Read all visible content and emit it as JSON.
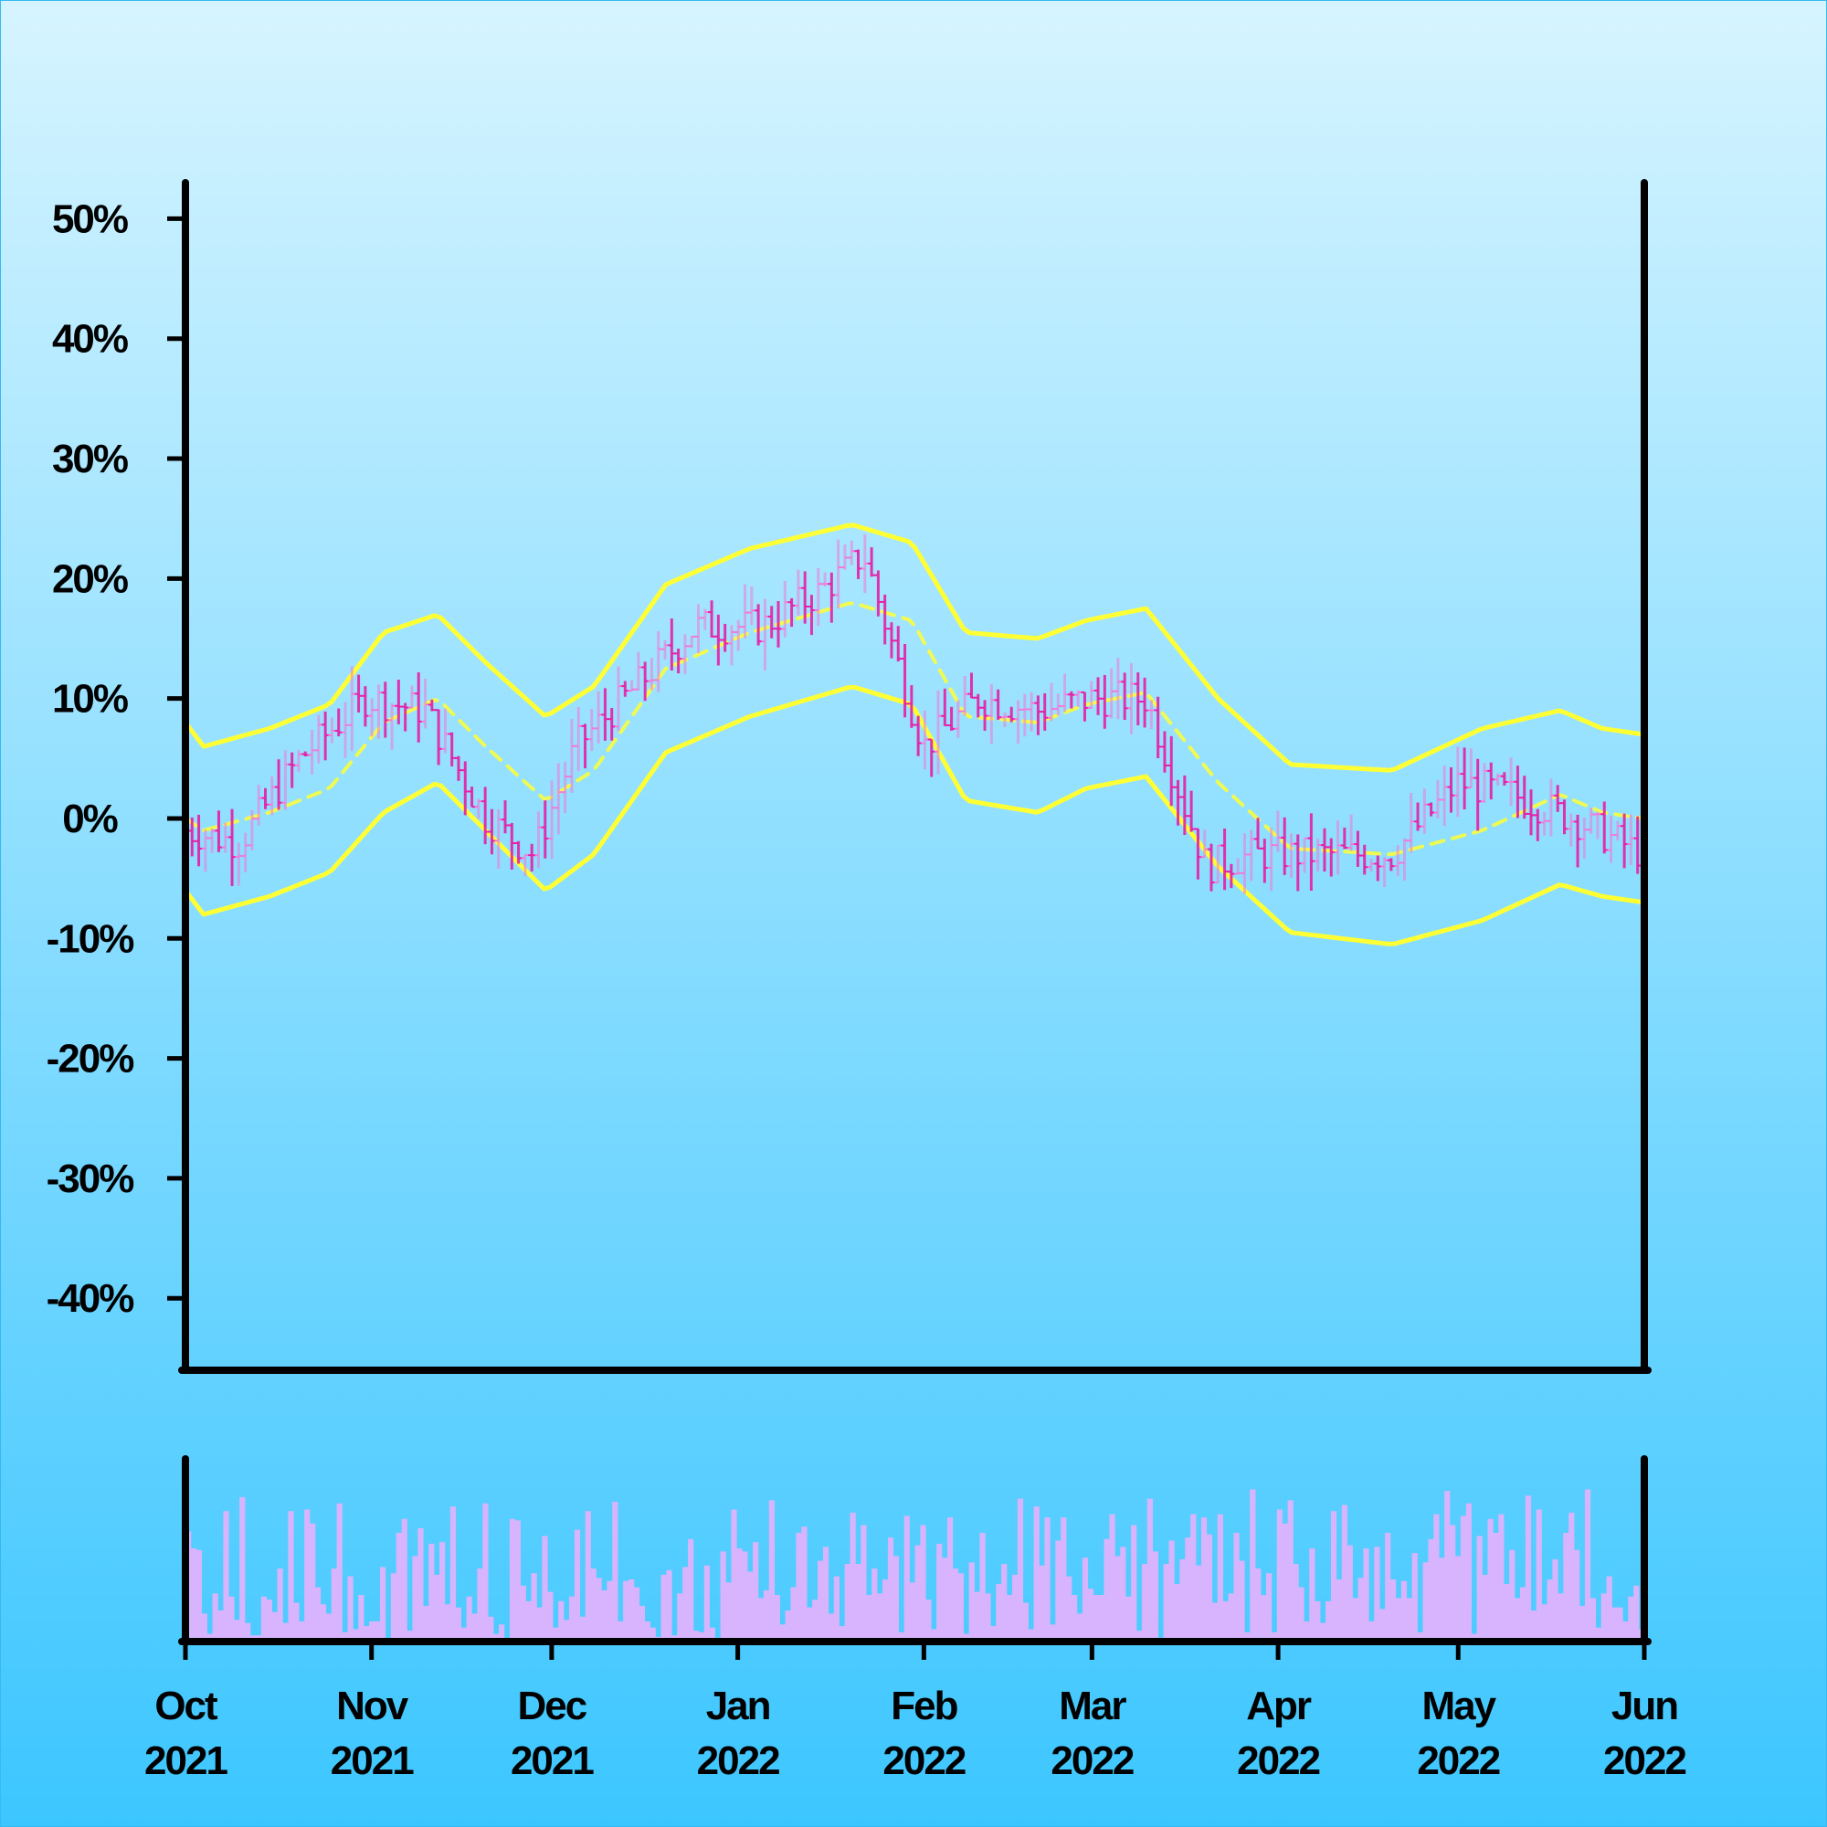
{
  "background": {
    "top_color": "#d6f4ff",
    "bottom_color": "#3cc6ff"
  },
  "colors": {
    "up_bar": "#f07ad8",
    "down_bar": "#e61fa8",
    "band": "#ffff33",
    "volume": "#d8b4ff",
    "axis": "#000000"
  },
  "chart_data": {
    "type": "line",
    "title": "",
    "xlabel": "",
    "ylabel": "",
    "start_date": "2021-10-01",
    "end_date": "2022-06-01",
    "ylim": [
      -0.46,
      0.53
    ],
    "y_ticks": [
      {
        "value": 0.5,
        "label": "50%"
      },
      {
        "value": 0.4,
        "label": "40%"
      },
      {
        "value": 0.3,
        "label": "30%"
      },
      {
        "value": 0.2,
        "label": "20%"
      },
      {
        "value": 0.1,
        "label": "10%"
      },
      {
        "value": 0.0,
        "label": "0%"
      },
      {
        "value": -0.1,
        "label": "-10%"
      },
      {
        "value": -0.2,
        "label": "-20%"
      },
      {
        "value": -0.3,
        "label": "-30%"
      },
      {
        "value": -0.4,
        "label": "-40%"
      }
    ],
    "x_ticks": [
      {
        "date": "2021-10-01",
        "month": "Oct",
        "year": "2021"
      },
      {
        "date": "2021-11-01",
        "month": "Nov",
        "year": "2021"
      },
      {
        "date": "2021-12-01",
        "month": "Dec",
        "year": "2021"
      },
      {
        "date": "2022-01-01",
        "month": "Jan",
        "year": "2022"
      },
      {
        "date": "2022-02-01",
        "month": "Feb",
        "year": "2022"
      },
      {
        "date": "2022-03-01",
        "month": "Mar",
        "year": "2022"
      },
      {
        "date": "2022-04-01",
        "month": "Apr",
        "year": "2022"
      },
      {
        "date": "2022-05-01",
        "month": "May",
        "year": "2022"
      },
      {
        "date": "2022-06-01",
        "month": "Jun",
        "year": "2022"
      }
    ],
    "series": [
      {
        "role": "price-bars",
        "style": "ohlc-vertical-bars",
        "points": [
          {
            "date": "2021-10-01",
            "value": -0.01
          },
          {
            "date": "2021-10-10",
            "value": -0.02
          },
          {
            "date": "2021-10-20",
            "value": 0.05
          },
          {
            "date": "2021-10-31",
            "value": 0.1
          },
          {
            "date": "2021-11-10",
            "value": 0.09
          },
          {
            "date": "2021-11-20",
            "value": 0.0
          },
          {
            "date": "2021-11-28",
            "value": -0.03
          },
          {
            "date": "2021-12-05",
            "value": 0.06
          },
          {
            "date": "2021-12-15",
            "value": 0.11
          },
          {
            "date": "2021-12-25",
            "value": 0.16
          },
          {
            "date": "2022-01-05",
            "value": 0.16
          },
          {
            "date": "2022-01-15",
            "value": 0.19
          },
          {
            "date": "2022-01-22",
            "value": 0.22
          },
          {
            "date": "2022-02-01",
            "value": 0.06
          },
          {
            "date": "2022-02-10",
            "value": 0.1
          },
          {
            "date": "2022-02-20",
            "value": 0.09
          },
          {
            "date": "2022-03-01",
            "value": 0.1
          },
          {
            "date": "2022-03-10",
            "value": 0.1
          },
          {
            "date": "2022-03-20",
            "value": -0.04
          },
          {
            "date": "2022-03-28",
            "value": -0.03
          },
          {
            "date": "2022-04-08",
            "value": -0.03
          },
          {
            "date": "2022-04-20",
            "value": -0.03
          },
          {
            "date": "2022-05-01",
            "value": 0.03
          },
          {
            "date": "2022-05-10",
            "value": 0.02
          },
          {
            "date": "2022-05-20",
            "value": 0.0
          },
          {
            "date": "2022-06-01",
            "value": -0.03
          }
        ]
      },
      {
        "role": "band-upper",
        "points": [
          {
            "date": "2021-10-01",
            "value": 0.08
          },
          {
            "date": "2021-10-04",
            "value": 0.06
          },
          {
            "date": "2021-10-15",
            "value": 0.075
          },
          {
            "date": "2021-10-25",
            "value": 0.095
          },
          {
            "date": "2021-11-03",
            "value": 0.155
          },
          {
            "date": "2021-11-12",
            "value": 0.17
          },
          {
            "date": "2021-11-20",
            "value": 0.13
          },
          {
            "date": "2021-11-30",
            "value": 0.085
          },
          {
            "date": "2021-12-08",
            "value": 0.11
          },
          {
            "date": "2021-12-20",
            "value": 0.195
          },
          {
            "date": "2022-01-03",
            "value": 0.225
          },
          {
            "date": "2022-01-20",
            "value": 0.245
          },
          {
            "date": "2022-01-30",
            "value": 0.23
          },
          {
            "date": "2022-02-08",
            "value": 0.155
          },
          {
            "date": "2022-02-20",
            "value": 0.15
          },
          {
            "date": "2022-02-28",
            "value": 0.165
          },
          {
            "date": "2022-03-10",
            "value": 0.175
          },
          {
            "date": "2022-03-22",
            "value": 0.1
          },
          {
            "date": "2022-04-03",
            "value": 0.045
          },
          {
            "date": "2022-04-20",
            "value": 0.04
          },
          {
            "date": "2022-05-05",
            "value": 0.075
          },
          {
            "date": "2022-05-18",
            "value": 0.09
          },
          {
            "date": "2022-05-25",
            "value": 0.075
          },
          {
            "date": "2022-06-01",
            "value": 0.07
          }
        ]
      },
      {
        "role": "band-middle",
        "style": "dashed",
        "points": [
          {
            "date": "2021-10-01",
            "value": 0.0
          },
          {
            "date": "2021-10-04",
            "value": -0.01
          },
          {
            "date": "2021-10-15",
            "value": 0.005
          },
          {
            "date": "2021-10-25",
            "value": 0.025
          },
          {
            "date": "2021-11-03",
            "value": 0.08
          },
          {
            "date": "2021-11-12",
            "value": 0.1
          },
          {
            "date": "2021-11-20",
            "value": 0.06
          },
          {
            "date": "2021-11-30",
            "value": 0.015
          },
          {
            "date": "2021-12-08",
            "value": 0.04
          },
          {
            "date": "2021-12-20",
            "value": 0.125
          },
          {
            "date": "2022-01-03",
            "value": 0.155
          },
          {
            "date": "2022-01-20",
            "value": 0.18
          },
          {
            "date": "2022-01-30",
            "value": 0.165
          },
          {
            "date": "2022-02-08",
            "value": 0.085
          },
          {
            "date": "2022-02-20",
            "value": 0.08
          },
          {
            "date": "2022-02-28",
            "value": 0.095
          },
          {
            "date": "2022-03-10",
            "value": 0.105
          },
          {
            "date": "2022-03-22",
            "value": 0.03
          },
          {
            "date": "2022-04-03",
            "value": -0.025
          },
          {
            "date": "2022-04-20",
            "value": -0.03
          },
          {
            "date": "2022-05-05",
            "value": -0.01
          },
          {
            "date": "2022-05-18",
            "value": 0.02
          },
          {
            "date": "2022-05-25",
            "value": 0.005
          },
          {
            "date": "2022-06-01",
            "value": 0.0
          }
        ]
      },
      {
        "role": "band-lower",
        "points": [
          {
            "date": "2021-10-01",
            "value": -0.06
          },
          {
            "date": "2021-10-04",
            "value": -0.08
          },
          {
            "date": "2021-10-15",
            "value": -0.065
          },
          {
            "date": "2021-10-25",
            "value": -0.045
          },
          {
            "date": "2021-11-03",
            "value": 0.005
          },
          {
            "date": "2021-11-12",
            "value": 0.03
          },
          {
            "date": "2021-11-20",
            "value": -0.01
          },
          {
            "date": "2021-11-30",
            "value": -0.06
          },
          {
            "date": "2021-12-08",
            "value": -0.03
          },
          {
            "date": "2021-12-20",
            "value": 0.055
          },
          {
            "date": "2022-01-03",
            "value": 0.085
          },
          {
            "date": "2022-01-20",
            "value": 0.11
          },
          {
            "date": "2022-01-30",
            "value": 0.095
          },
          {
            "date": "2022-02-08",
            "value": 0.015
          },
          {
            "date": "2022-02-20",
            "value": 0.005
          },
          {
            "date": "2022-02-28",
            "value": 0.025
          },
          {
            "date": "2022-03-10",
            "value": 0.035
          },
          {
            "date": "2022-03-22",
            "value": -0.04
          },
          {
            "date": "2022-04-03",
            "value": -0.095
          },
          {
            "date": "2022-04-20",
            "value": -0.105
          },
          {
            "date": "2022-05-05",
            "value": -0.085
          },
          {
            "date": "2022-05-18",
            "value": -0.055
          },
          {
            "date": "2022-05-25",
            "value": -0.065
          },
          {
            "date": "2022-06-01",
            "value": -0.07
          }
        ]
      }
    ],
    "volume": {
      "style": "bars",
      "relative_levels": [
        0.71,
        0.6,
        0.59,
        0.18,
        0.05,
        0.31,
        0.2,
        0.84,
        0.29,
        0.14,
        0.93,
        0.12,
        0.04,
        0.04,
        0.29,
        0.27,
        0.19,
        0.47,
        0.12,
        0.84,
        0.25,
        0.13,
        0.85,
        0.76,
        0.35,
        0.24,
        0.18,
        0.47,
        0.89,
        0.06,
        0.42,
        0.08,
        0.3,
        0.1,
        0.13,
        0.13,
        0.48,
        0.02,
        0.44,
        0.7,
        0.79,
        0.07,
        0.55,
        0.73,
        0.23,
        0.63,
        0.43,
        0.64,
        0.24,
        0.87,
        0.22,
        0.09,
        0.29,
        0.18,
        0.47,
        0.89,
        0.16,
        0.05,
        0.11,
        0.02,
        0.79,
        0.78,
        0.36,
        0.26,
        0.44,
        0.22,
        0.68,
        0.32,
        0.09,
        0.26,
        0.14,
        0.29,
        0.72,
        0.16,
        0.84,
        0.47,
        0.41,
        0.33,
        0.39,
        0.9,
        0.13,
        0.39,
        0.4,
        0.35,
        0.23,
        0.13,
        0.09,
        0.03,
        0.43,
        0.46,
        0.04,
        0.31,
        0.48,
        0.66,
        0.07,
        0.06,
        0.49,
        0.09,
        0.02,
        0.58,
        0.38,
        0.85,
        0.6,
        0.58,
        0.45,
        0.64,
        0.28,
        0.33,
        0.91,
        0.3,
        0.11,
        0.2,
        0.35,
        0.7,
        0.74,
        0.22,
        0.27,
        0.52,
        0.61,
        0.18,
        0.42,
        0.1,
        0.5,
        0.83,
        0.5,
        0.75,
        0.3,
        0.47,
        0.31,
        0.4,
        0.67,
        0.55,
        0.06,
        0.81,
        0.38,
        0.62,
        0.75,
        0.27,
        0.08,
        0.63,
        0.54,
        0.8,
        0.47,
        0.44,
        0.05,
        0.51,
        0.32,
        0.7,
        0.31,
        0.1,
        0.37,
        0.5,
        0.3,
        0.43,
        0.92,
        0.25,
        0.08,
        0.87,
        0.49,
        0.8,
        0.11,
        0.65,
        0.8,
        0.42,
        0.3,
        0.18,
        0.54,
        0.34,
        0.3,
        0.3,
        0.66,
        0.82,
        0.55,
        0.61,
        0.29,
        0.75,
        0.07,
        0.5,
        0.92,
        0.58,
        0.02,
        0.5,
        0.65,
        0.37,
        0.53,
        0.67,
        0.82,
        0.49,
        0.8,
        0.69,
        0.25,
        0.82,
        0.26,
        0.31,
        0.7,
        0.52,
        0.06,
        0.98,
        0.47,
        0.3,
        0.44,
        0.06,
        0.85,
        0.76,
        0.91,
        0.5,
        0.35,
        0.13,
        0.6,
        0.26,
        0.12,
        0.26,
        0.84,
        0.4,
        0.88,
        0.62,
        0.28,
        0.41,
        0.6,
        0.13,
        0.61,
        0.21,
        0.7,
        0.4,
        0.28,
        0.39,
        0.28,
        0.57,
        0.06,
        0.51,
        0.66,
        0.82,
        0.54,
        0.97,
        0.75,
        0.55,
        0.81,
        0.89,
        0.05,
        0.68,
        0.43,
        0.79,
        0.7,
        0.82,
        0.37,
        0.59,
        0.28,
        0.35,
        0.94,
        0.2,
        0.85,
        0.24,
        0.4,
        0.53,
        0.31,
        0.7,
        0.83,
        0.59,
        0.23,
        0.98,
        0.28,
        0.09,
        0.31,
        0.42,
        0.22,
        0.22,
        0.13,
        0.29,
        0.36,
        0.08
      ]
    }
  }
}
